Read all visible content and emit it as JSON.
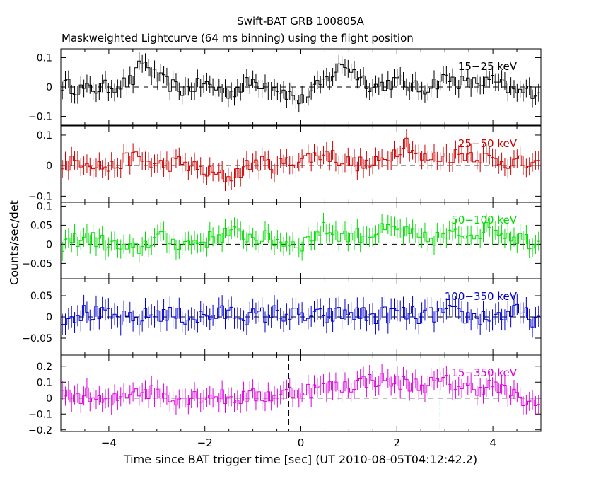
{
  "title": "Swift-BAT GRB 100805A",
  "subtitle": "Maskweighted Lightcurve (64 ms binning) using the flight position",
  "xlabel": "Time since BAT trigger time [sec] (UT 2010-08-05T04:12:42.2)",
  "ylabel": "Counts/sec/det",
  "chart_data": {
    "type": "line",
    "style": "step with error bars",
    "binning_sec": 0.064,
    "xlim": [
      -5,
      5
    ],
    "xticks": [
      -4,
      -2,
      0,
      2,
      4
    ],
    "xtick_labels": [
      "−4",
      "−2",
      "0",
      "2",
      "4"
    ],
    "markers": [
      {
        "x": -0.25,
        "color": "#000000",
        "style": "dashed"
      },
      {
        "x": 2.9,
        "color": "#00cc00",
        "style": "dash-dot"
      }
    ],
    "panels": [
      {
        "label": "15−25 keV",
        "color": "#000000",
        "ylim": [
          -0.13,
          0.13
        ],
        "yticks": [
          -0.1,
          0,
          0.1
        ],
        "ytick_labels": [
          "−0.1",
          "0",
          "0.1"
        ],
        "x": [
          -5.0,
          -4.5,
          -4.0,
          -3.5,
          -3.3,
          -3.0,
          -2.5,
          -2.0,
          -1.5,
          -1.0,
          -0.5,
          0.0,
          0.5,
          0.9,
          1.5,
          2.0,
          2.5,
          3.0,
          3.5,
          4.0,
          4.5,
          5.0
        ],
        "y": [
          0.01,
          -0.01,
          0.0,
          0.02,
          0.09,
          0.03,
          -0.01,
          0.01,
          -0.02,
          0.02,
          0.0,
          -0.05,
          0.02,
          0.08,
          0.0,
          0.02,
          -0.01,
          0.03,
          0.01,
          0.02,
          -0.02,
          -0.01
        ],
        "err": 0.03
      },
      {
        "label": "25−50 keV",
        "color": "#cc0000",
        "ylim": [
          -0.12,
          0.13
        ],
        "yticks": [
          -0.1,
          0,
          0.1
        ],
        "ytick_labels": [
          "−0.1",
          "0",
          "0.1"
        ],
        "x": [
          -5.0,
          -4.5,
          -4.0,
          -3.5,
          -3.0,
          -2.5,
          -2.0,
          -1.5,
          -1.0,
          -0.5,
          0.0,
          0.5,
          1.0,
          1.5,
          2.0,
          2.2,
          2.5,
          3.0,
          3.5,
          4.0,
          4.5,
          5.0
        ],
        "y": [
          0.0,
          0.02,
          -0.01,
          0.03,
          0.0,
          0.01,
          -0.02,
          -0.04,
          0.01,
          0.0,
          0.02,
          0.04,
          0.01,
          0.0,
          0.05,
          0.08,
          0.02,
          0.03,
          0.04,
          0.02,
          0.01,
          -0.01
        ],
        "err": 0.03
      },
      {
        "label": "50−100 keV",
        "color": "#00dd00",
        "ylim": [
          -0.09,
          0.11
        ],
        "yticks": [
          -0.05,
          0,
          0.05,
          0.1
        ],
        "ytick_labels": [
          "−0.05",
          "0",
          "0.05",
          "0.1"
        ],
        "x": [
          -5.0,
          -4.5,
          -4.0,
          -3.5,
          -3.0,
          -2.5,
          -2.0,
          -1.5,
          -1.0,
          -0.5,
          0.0,
          0.5,
          1.0,
          1.5,
          2.0,
          2.5,
          3.0,
          3.5,
          4.0,
          4.5,
          5.0
        ],
        "y": [
          0.0,
          0.02,
          0.0,
          -0.02,
          0.02,
          0.0,
          0.01,
          0.03,
          0.02,
          0.01,
          0.0,
          0.04,
          0.02,
          0.03,
          0.04,
          0.01,
          0.02,
          0.03,
          0.04,
          0.02,
          0.0
        ],
        "err": 0.025
      },
      {
        "label": "100−350 keV",
        "color": "#0000cc",
        "ylim": [
          -0.09,
          0.09
        ],
        "yticks": [
          -0.05,
          0,
          0.05
        ],
        "ytick_labels": [
          "−0.05",
          "0",
          "0.05"
        ],
        "x": [
          -5.0,
          -4.5,
          -4.0,
          -3.5,
          -3.0,
          -2.5,
          -2.0,
          -1.5,
          -1.0,
          -0.5,
          0.0,
          0.5,
          1.0,
          1.5,
          2.0,
          2.5,
          3.0,
          3.5,
          4.0,
          4.5,
          5.0
        ],
        "y": [
          0.0,
          0.01,
          0.0,
          -0.01,
          0.01,
          0.0,
          0.0,
          0.01,
          0.0,
          0.01,
          0.0,
          0.0,
          0.01,
          0.0,
          0.01,
          0.0,
          0.01,
          0.0,
          0.0,
          0.01,
          -0.01
        ],
        "err": 0.025
      },
      {
        "label": "15−350 keV",
        "color": "#dd00dd",
        "ylim": [
          -0.21,
          0.27
        ],
        "yticks": [
          -0.2,
          -0.1,
          0,
          0.1,
          0.2
        ],
        "ytick_labels": [
          "−0.2",
          "−0.1",
          "0",
          "0.1",
          "0.2"
        ],
        "x": [
          -5.0,
          -4.5,
          -4.0,
          -3.5,
          -3.0,
          -2.5,
          -2.0,
          -1.5,
          -1.0,
          -0.5,
          0.0,
          0.5,
          1.0,
          1.5,
          2.0,
          2.5,
          3.0,
          3.5,
          4.0,
          4.5,
          5.0
        ],
        "y": [
          0.0,
          0.02,
          -0.04,
          0.06,
          0.03,
          0.0,
          0.02,
          0.0,
          0.01,
          0.02,
          0.05,
          0.06,
          0.08,
          0.12,
          0.1,
          0.08,
          0.1,
          0.06,
          0.08,
          0.0,
          -0.06
        ],
        "err": 0.06
      }
    ]
  }
}
